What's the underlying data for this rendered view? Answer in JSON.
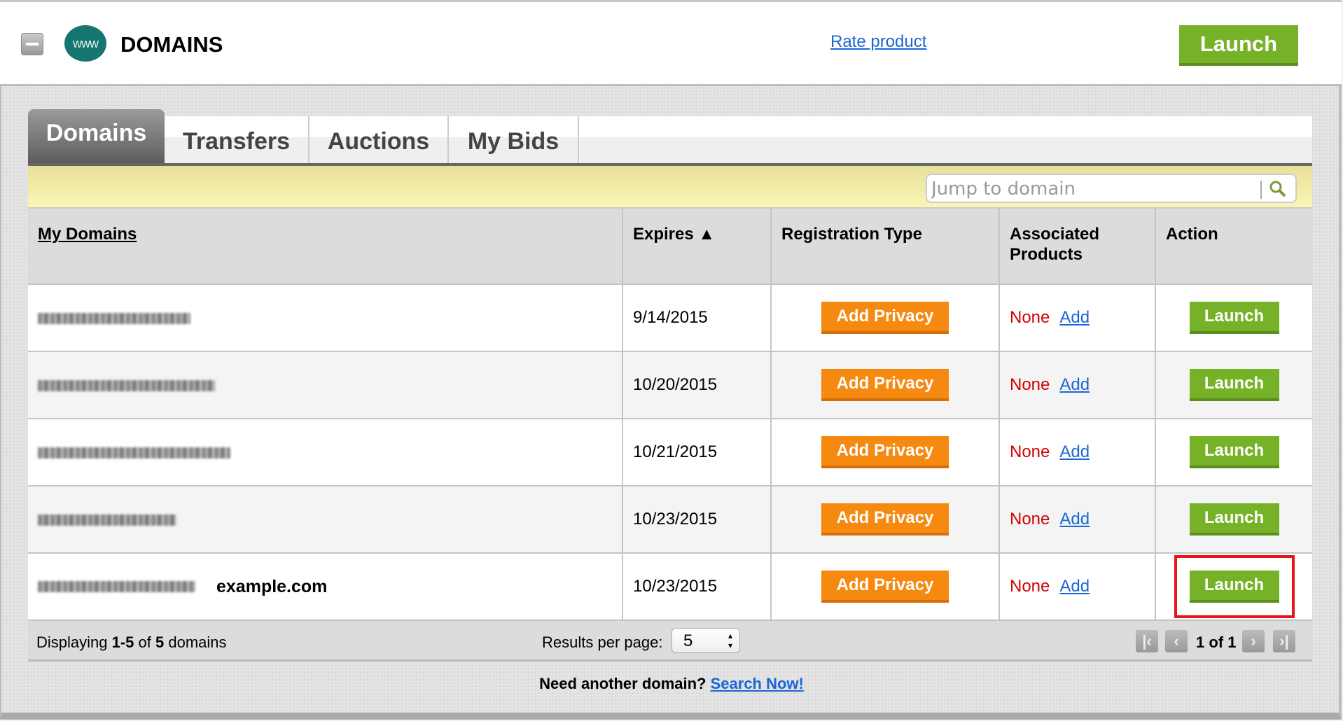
{
  "header": {
    "title": "DOMAINS",
    "logo_text": "www",
    "rate_product": "Rate product",
    "launch": "Launch"
  },
  "tabs": [
    {
      "label": "Domains",
      "active": true
    },
    {
      "label": "Transfers"
    },
    {
      "label": "Auctions"
    },
    {
      "label": "My Bids"
    }
  ],
  "search": {
    "placeholder": "Jump to domain"
  },
  "table": {
    "columns": [
      "My Domains",
      "Expires ▲",
      "Registration Type",
      "Associated Products",
      "Action"
    ],
    "rows": [
      {
        "expires": "9/14/2015",
        "registration": "Add Privacy",
        "products": "None",
        "add": "Add",
        "action": "Launch"
      },
      {
        "expires": "10/20/2015",
        "registration": "Add Privacy",
        "products": "None",
        "add": "Add",
        "action": "Launch"
      },
      {
        "expires": "10/21/2015",
        "registration": "Add Privacy",
        "products": "None",
        "add": "Add",
        "action": "Launch"
      },
      {
        "expires": "10/23/2015",
        "registration": "Add Privacy",
        "products": "None",
        "add": "Add",
        "action": "Launch"
      },
      {
        "expires": "10/23/2015",
        "label": "example.com",
        "registration": "Add Privacy",
        "products": "None",
        "add": "Add",
        "action": "Launch",
        "highlighted": true
      }
    ]
  },
  "footer": {
    "displaying_prefix": "Displaying ",
    "range": "1-5",
    "of": " of ",
    "total": "5",
    "suffix": " domains",
    "results_per_page": "Results per page:",
    "per_page_value": "5",
    "page_info": "1 of 1"
  },
  "bottom": {
    "text": "Need another domain? ",
    "link": "Search Now!"
  },
  "colors": {
    "launch_green": "#76b227",
    "privacy_orange": "#f6890f",
    "highlight_red": "#e8141a",
    "link_blue": "#1a66d6",
    "none_red": "#d40000"
  }
}
